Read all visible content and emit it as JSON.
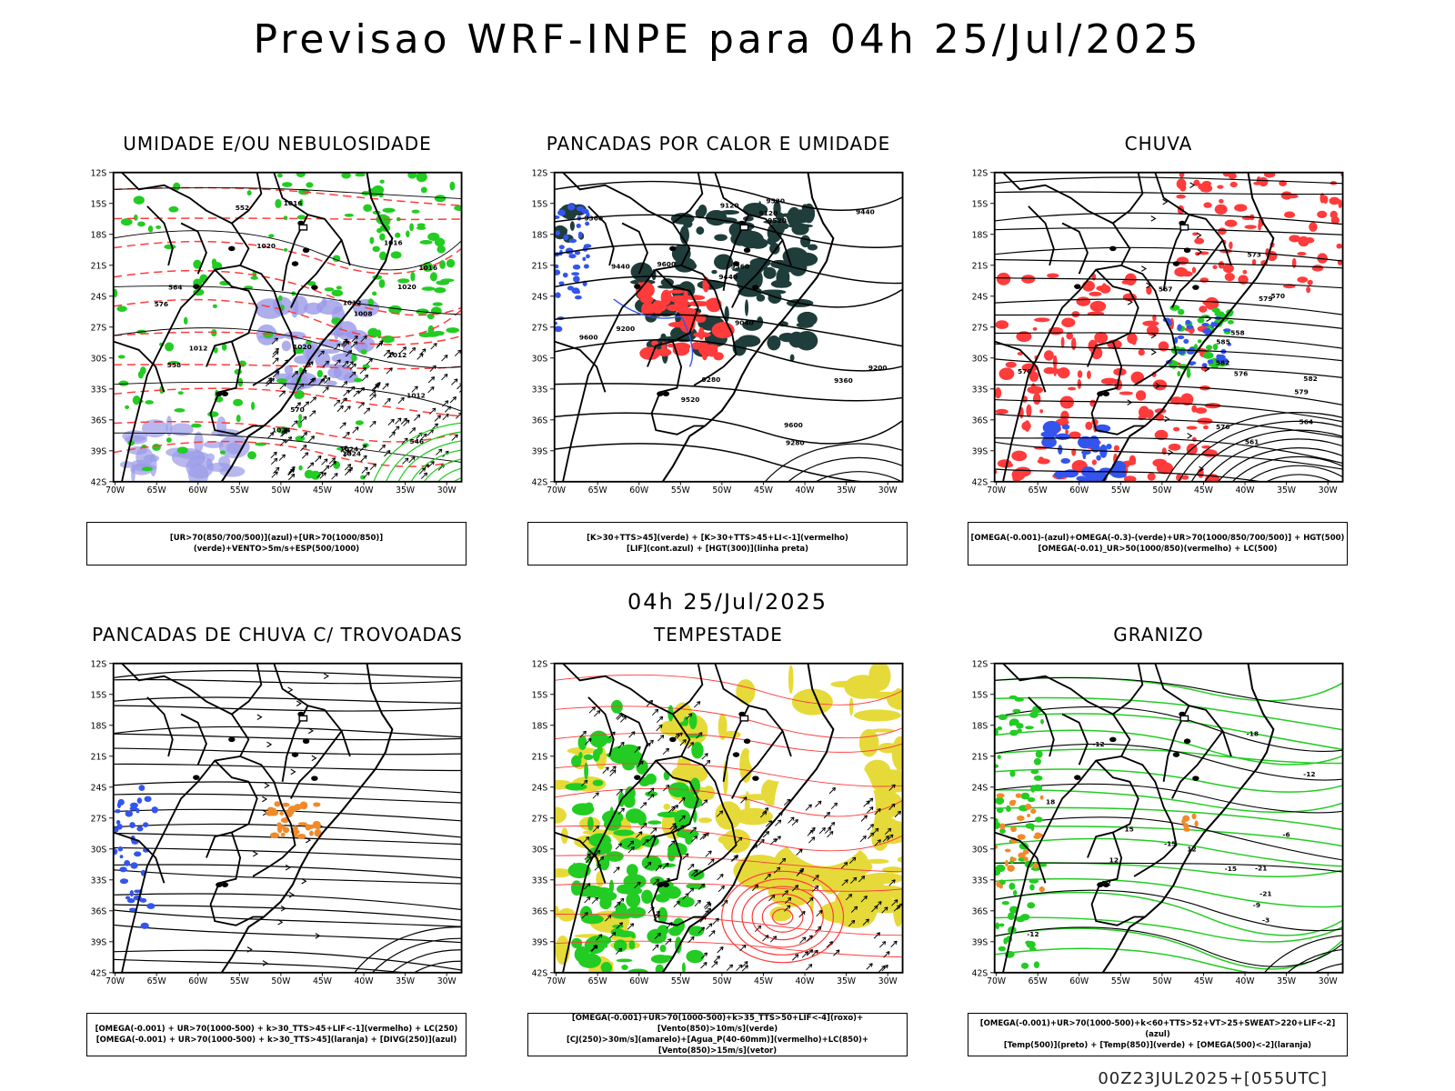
{
  "title": "Previsao WRF-INPE  para 04h 25/Jul/2025",
  "mid_time": "04h 25/Jul/2025",
  "footer": "00Z23JUL2025+[055UTC]",
  "lat_labels": [
    "12S",
    "15S",
    "18S",
    "21S",
    "24S",
    "27S",
    "30S",
    "33S",
    "36S",
    "39S",
    "42S"
  ],
  "lon_labels": [
    "70W",
    "65W",
    "60W",
    "55W",
    "50W",
    "45W",
    "40W",
    "35W",
    "30W"
  ],
  "panels": [
    {
      "title": "UMIDADE E/OU NEBULOSIDADE",
      "legend": [
        "[UR>70(850/700/500)](azul)+[UR>70(1000/850)](verde)+VENTO>5m/s+ESP(500/1000)"
      ],
      "labels": [
        "1012",
        "1012",
        "1016",
        "1020",
        "1020",
        "1024",
        "1016",
        "1012",
        "1020",
        "1024",
        "1016",
        "1012",
        "1008",
        "1024",
        "570",
        "564",
        "558",
        "552",
        "546",
        "576"
      ]
    },
    {
      "title": "PANCADAS POR CALOR E UMIDADE",
      "legend": [
        "[K>30+TTS>45](verde) + [K>30+TTS>45+LI<-1](vermelho)",
        "[LIF](cont.azul) + [HGT(300)](linha preta)"
      ],
      "labels": [
        "9600",
        "9600",
        "9520",
        "9520",
        "9520",
        "9440",
        "9440",
        "9440",
        "9360",
        "9360",
        "9360",
        "9280",
        "9280",
        "9200",
        "9200",
        "9120",
        "9120",
        "9040",
        "9600"
      ]
    },
    {
      "title": "CHUVA",
      "legend": [
        "[OMEGA(-0.001)-(azul)+OMEGA(-0.3)-(verde)+UR>70(1000/850/700/500)] + HGT(500)",
        "[OMEGA(-0.01)_UR>50(1000/850)(vermelho) + LC(500)"
      ],
      "labels": [
        "582",
        "582",
        "579",
        "579",
        "576",
        "573",
        "570",
        "567",
        "564",
        "561",
        "558",
        "585",
        "570",
        "576"
      ]
    },
    {
      "title": "PANCADAS DE CHUVA C/ TROVOADAS",
      "legend": [
        "[OMEGA(-0.001) + UR>70(1000-500) + k>30_TTS>45+LIF<-1](vermelho) + LC(250)",
        "[OMEGA(-0.001) + UR>70(1000-500) + k>30_TTS>45](laranja) + [DIVG(250)](azul)"
      ],
      "labels": []
    },
    {
      "title": "TEMPESTADE",
      "legend": [
        "[OMEGA(-0.001)+UR>70(1000-500)+k>35_TTS>50+LIF<-4](roxo)+[Vento(850)>10m/s](verde)",
        "[CJ(250)>30m/s](amarelo)+[Agua_P(40-60mm)](vermelho)+LC(850)+[Vento(850)>15m/s](vetor)"
      ],
      "labels": []
    },
    {
      "title": "GRANIZO",
      "legend": [
        "[OMEGA(-0.001)+UR>70(1000-500)+k<60+TTS>52+VT>25+SWEAT>220+LIF<-2](azul)",
        "[Temp(500)](preto) + [Temp(850)](verde) + [OMEGA(500)<-2](laranja)"
      ],
      "labels": [
        "-3",
        "-12",
        "-12",
        "-12",
        "-12",
        "-15",
        "-15",
        "-18",
        "-21",
        "-21",
        "-9",
        "-6",
        "12",
        "15",
        "12",
        "18"
      ]
    }
  ],
  "colors": {
    "blue": "#3355ee",
    "green": "#22cc22",
    "red": "#ff3b3b",
    "orange": "#f08a2a",
    "yellow": "#e6da3a",
    "darkgreen": "#1f3d3a",
    "lavender": "#9a9ae8"
  }
}
